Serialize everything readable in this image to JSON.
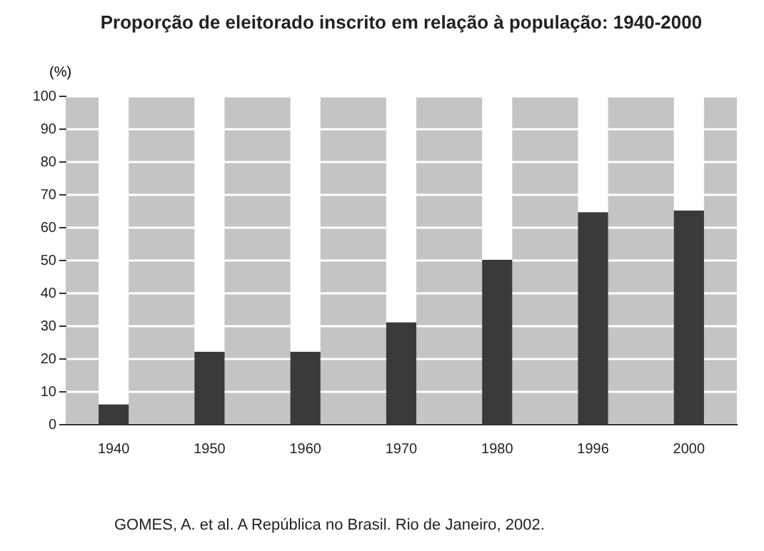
{
  "chart_data": {
    "type": "bar",
    "title": "Proporção de eleitorado inscrito em relação à população: 1940-2000",
    "ylabel": "(%)",
    "categories": [
      "1940",
      "1950",
      "1960",
      "1970",
      "1980",
      "1996",
      "2000"
    ],
    "series": [
      {
        "color": "#3a3a3a",
        "values": [
          6,
          22,
          22,
          31,
          50,
          64.5,
          65
        ]
      },
      {
        "color": "#ffffff",
        "values": [
          94,
          78,
          78,
          69,
          50,
          35.5,
          35
        ]
      }
    ],
    "stacked": true,
    "ylim": [
      0,
      100
    ],
    "yticks": [
      0,
      10,
      20,
      30,
      40,
      50,
      60,
      70,
      80,
      90,
      100
    ],
    "grid": "y",
    "legend": false,
    "annotations": [
      "GOMES, A. et al. A República no Brasil. Rio de Janeiro, 2002."
    ]
  }
}
